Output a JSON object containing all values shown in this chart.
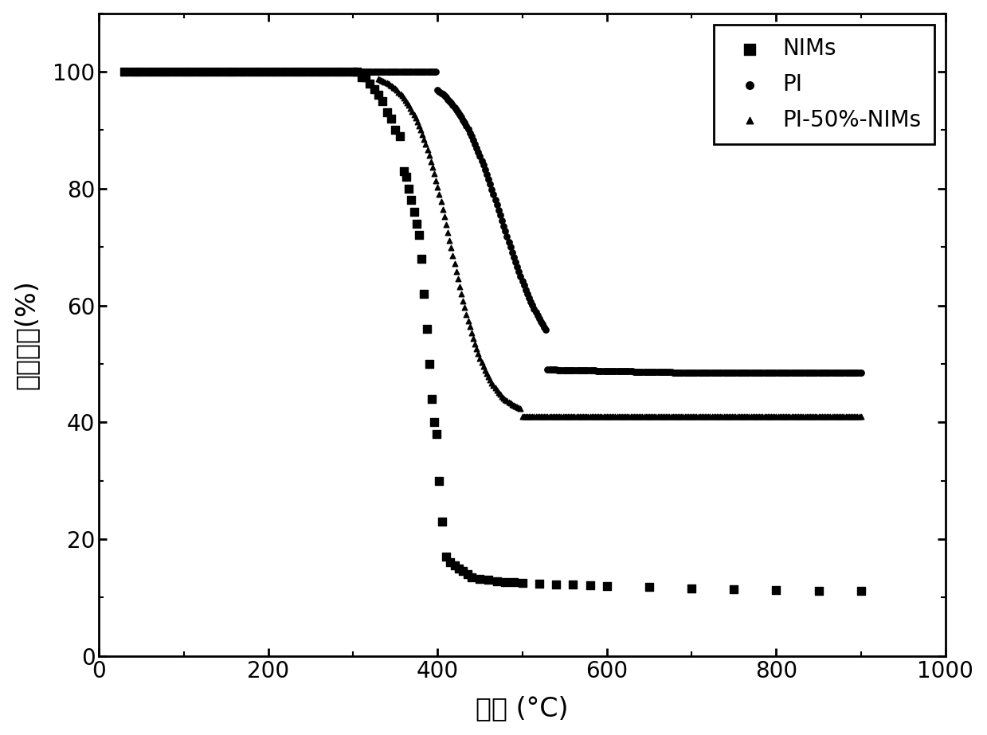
{
  "title": "",
  "xlabel": "温度 (°C)",
  "ylabel": "质量分数(%)",
  "xlim": [
    0,
    1000
  ],
  "ylim": [
    0,
    110
  ],
  "xticks": [
    0,
    200,
    400,
    600,
    800,
    1000
  ],
  "yticks": [
    0,
    20,
    40,
    60,
    80,
    100
  ],
  "legend_labels": [
    "NIMs",
    "PI",
    "PI-50%-NIMs"
  ],
  "background_color": "#ffffff",
  "NIMs_x": [
    30,
    40,
    50,
    60,
    70,
    80,
    90,
    100,
    110,
    120,
    130,
    140,
    150,
    160,
    170,
    180,
    190,
    200,
    210,
    220,
    230,
    240,
    250,
    260,
    270,
    280,
    290,
    300,
    305,
    310,
    315,
    320,
    325,
    330,
    335,
    340,
    345,
    350,
    355,
    360,
    363,
    366,
    369,
    372,
    375,
    378,
    381,
    384,
    387,
    390,
    393,
    396,
    399,
    402,
    405,
    410,
    415,
    420,
    425,
    430,
    435,
    440,
    450,
    460,
    470,
    480,
    490,
    500,
    520,
    540,
    560,
    580,
    600,
    650,
    700,
    750,
    800,
    850,
    900
  ],
  "NIMs_y": [
    100,
    100,
    100,
    100,
    100,
    100,
    100,
    100,
    100,
    100,
    100,
    100,
    100,
    100,
    100,
    100,
    100,
    100,
    100,
    100,
    100,
    100,
    100,
    100,
    100,
    100,
    100,
    100,
    100,
    99,
    99,
    98,
    97,
    96,
    95,
    93,
    92,
    90,
    89,
    83,
    82,
    80,
    78,
    76,
    74,
    72,
    68,
    62,
    56,
    50,
    44,
    40,
    38,
    30,
    23,
    17,
    16,
    15.5,
    15,
    14.5,
    14,
    13.5,
    13.2,
    13.0,
    12.8,
    12.7,
    12.6,
    12.5,
    12.4,
    12.3,
    12.2,
    12.1,
    12.0,
    11.8,
    11.6,
    11.4,
    11.3,
    11.2,
    11.1
  ],
  "PI_x_sparse": [
    400,
    410,
    420,
    430,
    440,
    450,
    460,
    470,
    480,
    490,
    500,
    510,
    520
  ],
  "PI_y_sparse": [
    99,
    98,
    97,
    96,
    95,
    94,
    89,
    81,
    75,
    68,
    60,
    55,
    52
  ],
  "PI50_x_sparse": [
    340,
    350,
    360,
    370,
    380,
    385,
    390,
    395,
    400,
    405,
    410
  ],
  "PI50_y_sparse": [
    99,
    97,
    92,
    88,
    83,
    79,
    74,
    70,
    67,
    65,
    63
  ]
}
